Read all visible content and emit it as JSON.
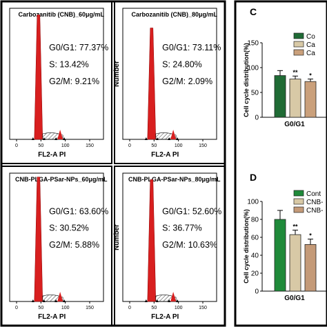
{
  "flow_panels": [
    {
      "title": "Carbozanitib (CNB)_60μg/mL",
      "g0g1": "G0/G1: 77.37%",
      "s": "S: 13.42%",
      "g2m": "G2/M: 9.21%",
      "xlabel": "FL2-A PI",
      "ylabel": "",
      "peak": 0.95
    },
    {
      "title": "Carbozanitib (CNB)_80μg/mL",
      "g0g1": "G0/G1: 73.11%",
      "s": "S: 24.80%",
      "g2m": "G2/M: 2.09%",
      "xlabel": "FL2-A PI",
      "ylabel": "Number",
      "peak": 0.85
    },
    {
      "title": "CNB-PLGA-PSar-NPs_60μg/mL",
      "g0g1": "G0/G1: 63.60%",
      "s": "S: 30.52%",
      "g2m": "G2/M: 5.88%",
      "xlabel": "FL2-A PI",
      "ylabel": "",
      "peak": 0.97
    },
    {
      "title": "CNB-PLGA-PSar-NPs_80μg/mL",
      "g0g1": "G0/G1: 52.60%",
      "s": "S: 36.77%",
      "g2m": "G2/M: 10.63%",
      "xlabel": "FL2-A PI",
      "ylabel": "Number",
      "peak": 0.95
    }
  ],
  "flow_ticks": [
    "0",
    "50",
    "100",
    "150"
  ],
  "chart_data": [
    {
      "type": "bar",
      "panel_label": "C",
      "ylabel": "Cell cycle distribution(%)",
      "ylim": [
        0,
        150
      ],
      "yticks": [
        "0",
        "50",
        "100",
        "150"
      ],
      "categories": [
        "G0/G1"
      ],
      "series": [
        {
          "name": "Co",
          "values": [
            84
          ],
          "error": [
            10
          ],
          "sig": "",
          "color": "#1f6b35"
        },
        {
          "name": "Ca",
          "values": [
            77
          ],
          "error": [
            6
          ],
          "sig": "**",
          "color": "#d8c9a6"
        },
        {
          "name": "Ca",
          "values": [
            72
          ],
          "error": [
            5
          ],
          "sig": "*",
          "color": "#caa07b"
        }
      ]
    },
    {
      "type": "bar",
      "panel_label": "D",
      "ylabel": "Cell cycle distribution(%)",
      "ylim": [
        0,
        100
      ],
      "yticks": [
        "0",
        "20",
        "40",
        "60",
        "80",
        "100"
      ],
      "categories": [
        "G0/G1"
      ],
      "series": [
        {
          "name": "Cont",
          "values": [
            80
          ],
          "error": [
            10
          ],
          "sig": "",
          "color": "#1f8a3a"
        },
        {
          "name": "CNB-",
          "values": [
            63
          ],
          "error": [
            5
          ],
          "sig": "**",
          "color": "#d8c9a6"
        },
        {
          "name": "CNB-",
          "values": [
            52
          ],
          "error": [
            6
          ],
          "sig": "*",
          "color": "#c49a78"
        }
      ]
    }
  ]
}
